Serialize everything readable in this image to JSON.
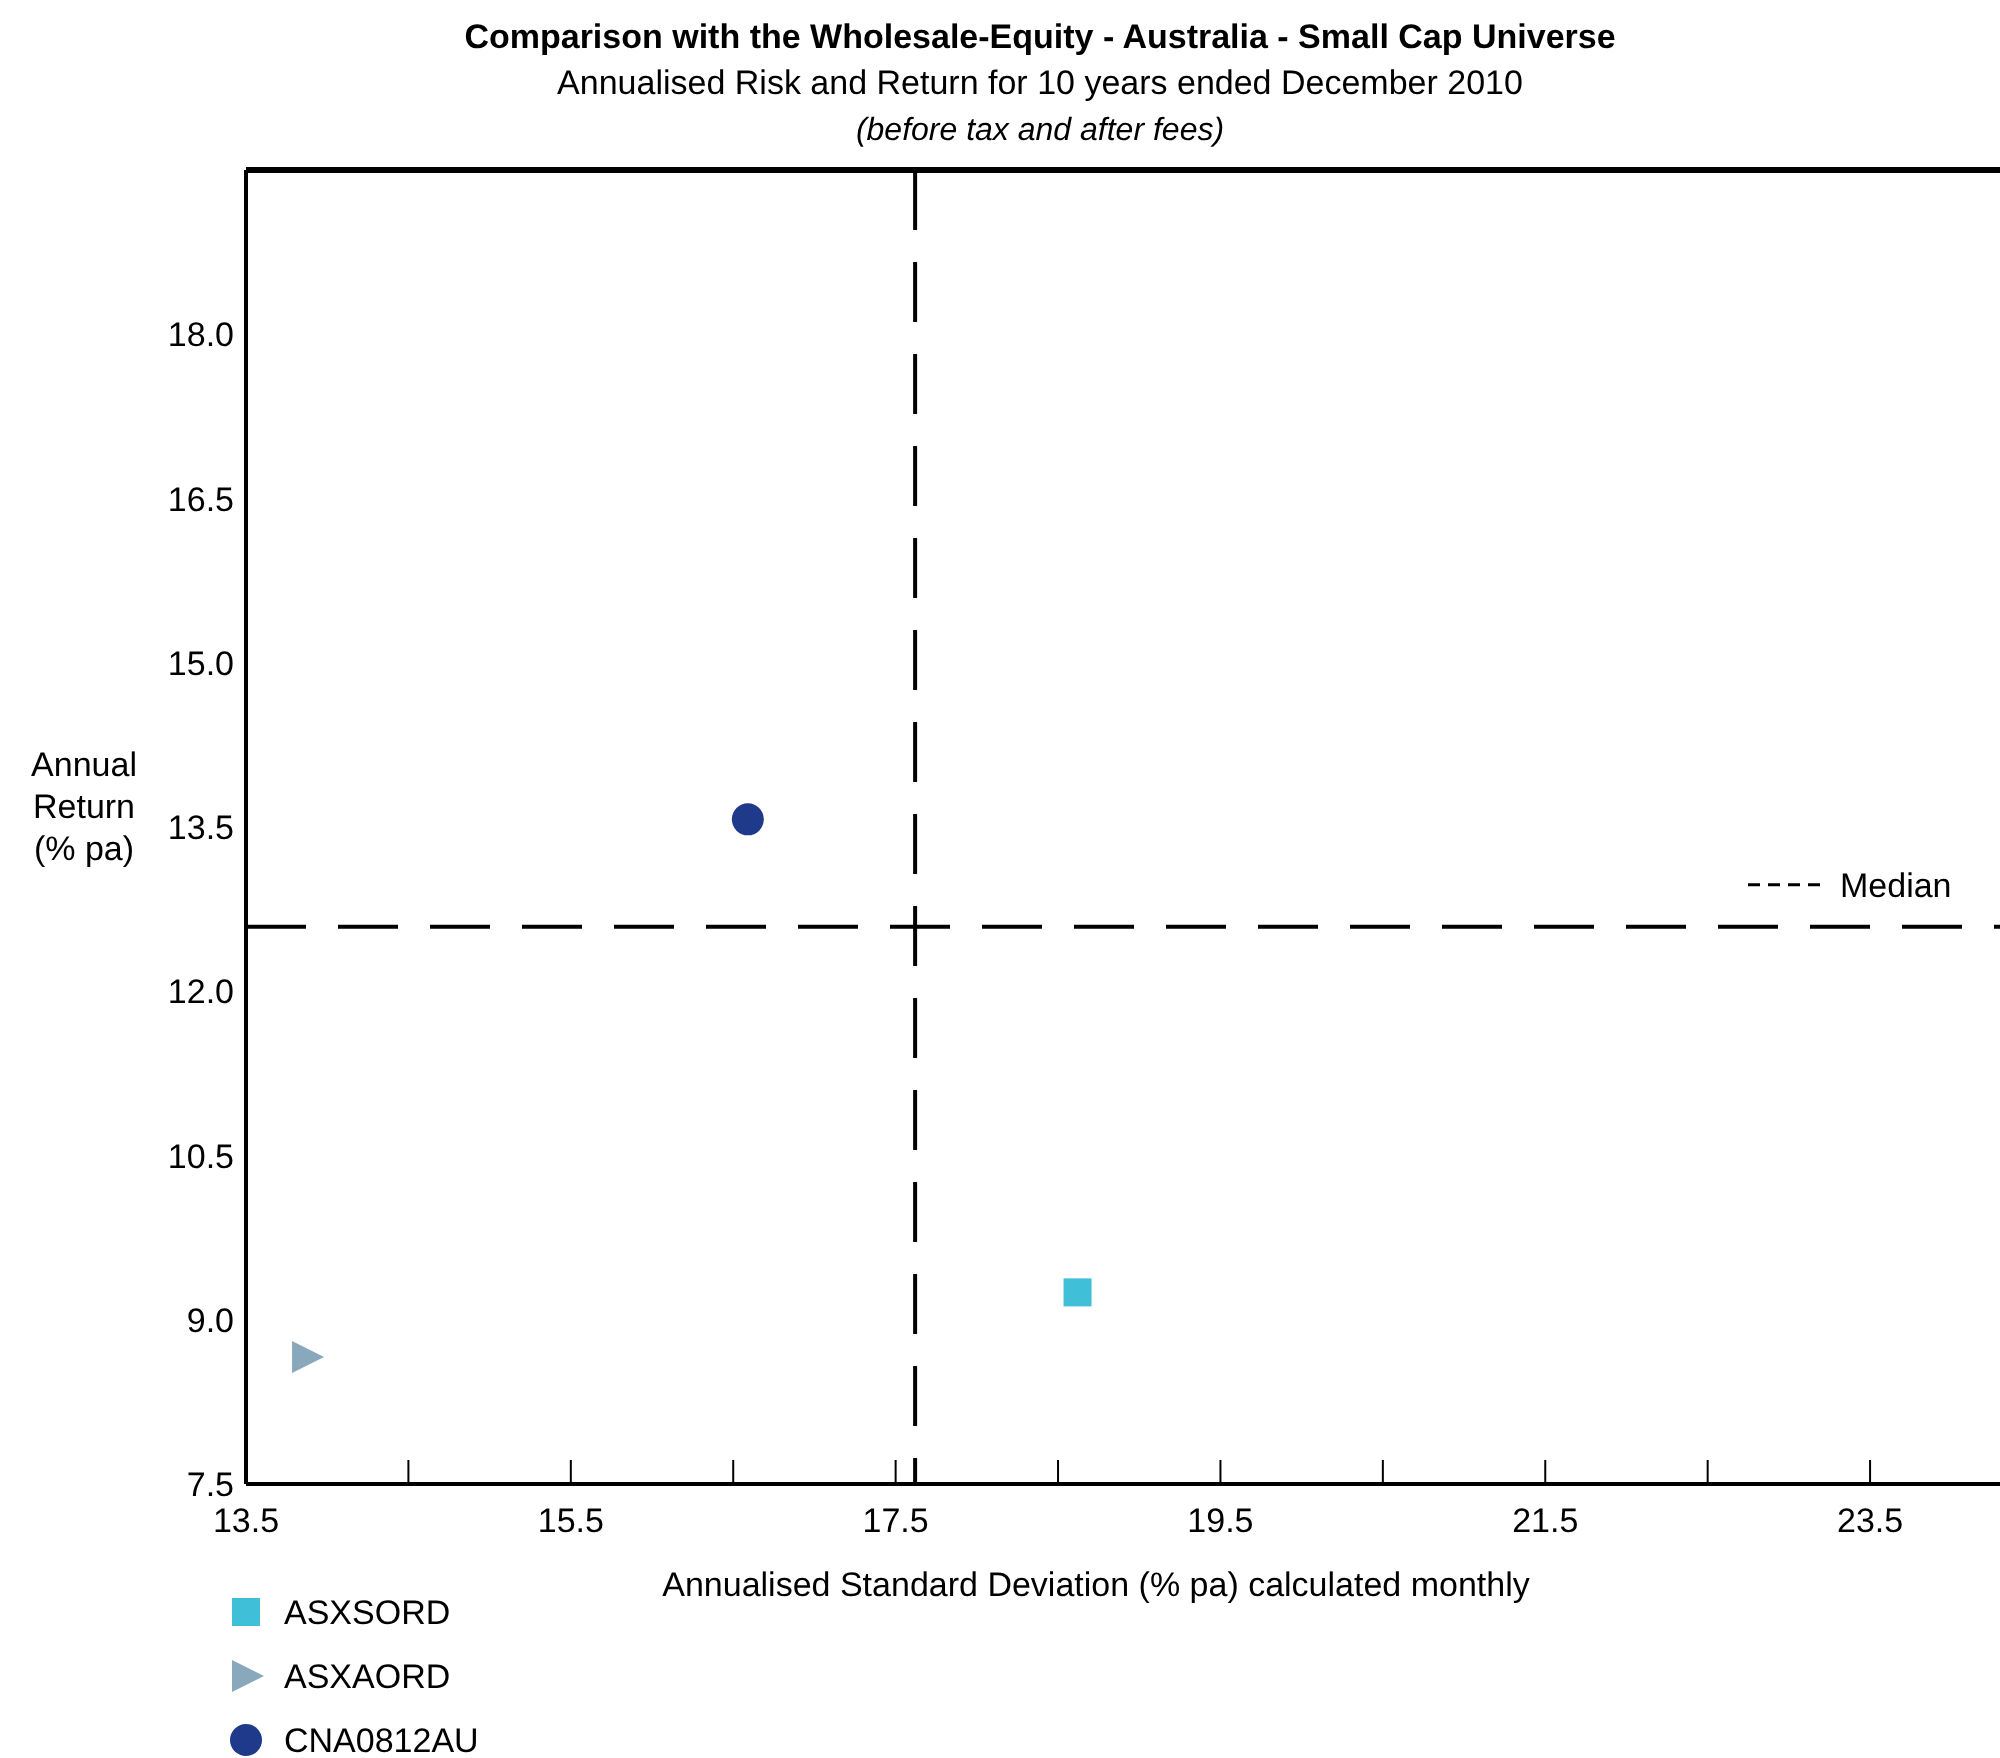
{
  "chart_data": {
    "type": "scatter",
    "title": "Comparison with the Wholesale-Equity - Australia - Small Cap Universe",
    "subtitle": "Annualised Risk and Return for 10 years ended December 2010",
    "annotations": [
      "(before tax and after fees)"
    ],
    "xlabel": "Annualised Standard Deviation (% pa) calculated monthly",
    "ylabel": "Annual Return (% pa)",
    "xlim": [
      13.5,
      24.3
    ],
    "ylim": [
      7.5,
      19.5
    ],
    "xticks": [
      13.5,
      {
        "value": 14.5,
        "label": null
      },
      15.5,
      {
        "value": 16.5,
        "label": null
      },
      17.5,
      {
        "value": 18.5,
        "label": null
      },
      19.5,
      {
        "value": 20.5,
        "label": null
      },
      21.5,
      {
        "value": 22.5,
        "label": null
      },
      23.5
    ],
    "yticks": [
      7.5,
      {
        "value": 9,
        "label": "9.0"
      },
      10.5,
      {
        "value": 12,
        "label": "12.0"
      },
      13.5,
      {
        "value": 15,
        "label": "15.0"
      },
      16.5,
      {
        "value": 18,
        "label": "18.0"
      }
    ],
    "grid": false,
    "legend": "bottom left",
    "ref_lines": [
      {
        "axis": "x",
        "value": 17.62,
        "line_style": "dashed",
        "color": "#000000"
      },
      {
        "axis": "y",
        "value": 12.59,
        "label": "Median",
        "line_style": "dashed",
        "color": "#000000"
      }
    ],
    "series": [
      {
        "name": "ASXSORD",
        "color": "#40c0d8",
        "marker": "square",
        "x": [
          18.62
        ],
        "values": [
          9.25
        ]
      },
      {
        "name": "ASXAORD",
        "color": "#8aa8bc",
        "marker": "triangle",
        "x": [
          13.87
        ],
        "values": [
          8.66
        ]
      },
      {
        "name": "CNA0812AU",
        "color": "#1f3a8a",
        "marker": "circle",
        "x": [
          16.59
        ],
        "values": [
          13.57
        ]
      }
    ]
  }
}
